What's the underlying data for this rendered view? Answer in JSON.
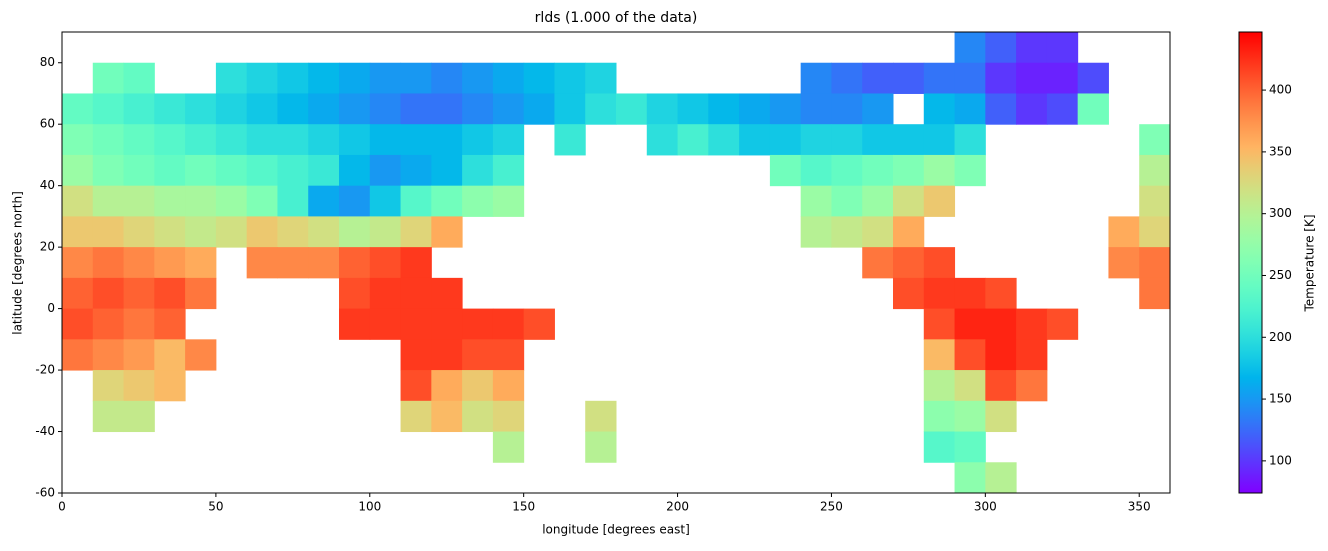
{
  "chart_data": {
    "type": "heatmap",
    "title": "rlds (1.000 of the data)",
    "xlabel": "longitude [degrees east]",
    "ylabel": "latitude [degrees north]",
    "colormap": "rainbow",
    "xlim": [
      0,
      360
    ],
    "ylim": [
      -60,
      90
    ],
    "xticks": [
      0,
      50,
      100,
      150,
      200,
      250,
      300,
      350
    ],
    "yticks": [
      -60,
      -40,
      -20,
      0,
      20,
      40,
      60,
      80
    ],
    "x": [
      5,
      15,
      25,
      35,
      45,
      55,
      65,
      75,
      85,
      95,
      105,
      115,
      125,
      135,
      145,
      155,
      165,
      175,
      185,
      195,
      205,
      215,
      225,
      235,
      245,
      255,
      265,
      275,
      285,
      295,
      305,
      315,
      325,
      335,
      345,
      355
    ],
    "y": [
      85,
      75,
      65,
      55,
      45,
      35,
      25,
      15,
      5,
      -5,
      -15,
      -25,
      -35,
      -45,
      -55
    ],
    "values": [
      [
        null,
        null,
        null,
        null,
        null,
        null,
        null,
        null,
        null,
        null,
        null,
        null,
        null,
        null,
        null,
        null,
        null,
        null,
        null,
        null,
        null,
        null,
        null,
        null,
        null,
        null,
        null,
        null,
        null,
        140,
        120,
        100,
        100,
        null,
        null,
        null
      ],
      [
        null,
        250,
        240,
        null,
        null,
        200,
        190,
        180,
        170,
        160,
        150,
        150,
        140,
        150,
        160,
        170,
        180,
        190,
        null,
        null,
        null,
        null,
        null,
        null,
        140,
        130,
        120,
        120,
        130,
        130,
        100,
        90,
        90,
        110,
        null,
        null
      ],
      [
        240,
        230,
        220,
        210,
        200,
        190,
        180,
        170,
        160,
        150,
        140,
        130,
        130,
        140,
        150,
        160,
        180,
        200,
        210,
        190,
        180,
        170,
        160,
        150,
        140,
        140,
        150,
        null,
        170,
        160,
        120,
        100,
        110,
        250,
        null,
        null
      ],
      [
        260,
        250,
        240,
        230,
        220,
        210,
        200,
        200,
        190,
        180,
        170,
        170,
        170,
        180,
        190,
        null,
        210,
        null,
        null,
        200,
        220,
        200,
        180,
        180,
        190,
        190,
        180,
        180,
        180,
        200,
        null,
        null,
        null,
        null,
        null,
        260
      ],
      [
        280,
        260,
        250,
        240,
        250,
        240,
        230,
        220,
        210,
        170,
        150,
        160,
        170,
        200,
        220,
        null,
        null,
        null,
        null,
        null,
        null,
        null,
        null,
        250,
        230,
        240,
        250,
        260,
        280,
        260,
        null,
        null,
        null,
        null,
        null,
        300
      ],
      [
        320,
        300,
        300,
        290,
        290,
        280,
        260,
        220,
        160,
        150,
        180,
        230,
        250,
        270,
        280,
        null,
        null,
        null,
        null,
        null,
        null,
        null,
        null,
        null,
        280,
        260,
        280,
        320,
        340,
        null,
        null,
        null,
        null,
        null,
        null,
        320
      ],
      [
        340,
        340,
        330,
        320,
        310,
        320,
        340,
        330,
        320,
        300,
        310,
        330,
        360,
        null,
        null,
        null,
        null,
        null,
        null,
        null,
        null,
        null,
        null,
        null,
        300,
        310,
        320,
        360,
        null,
        null,
        null,
        null,
        null,
        null,
        360,
        330
      ],
      [
        380,
        390,
        380,
        370,
        360,
        null,
        380,
        380,
        380,
        400,
        410,
        420,
        null,
        null,
        null,
        null,
        null,
        null,
        null,
        null,
        null,
        null,
        null,
        null,
        null,
        null,
        390,
        400,
        410,
        null,
        null,
        null,
        null,
        null,
        380,
        390
      ],
      [
        400,
        410,
        400,
        410,
        390,
        null,
        null,
        null,
        null,
        410,
        420,
        420,
        420,
        null,
        null,
        null,
        null,
        null,
        null,
        null,
        null,
        null,
        null,
        null,
        null,
        null,
        null,
        410,
        420,
        420,
        410,
        null,
        null,
        null,
        null,
        390
      ],
      [
        410,
        400,
        390,
        400,
        null,
        null,
        null,
        null,
        null,
        420,
        420,
        420,
        420,
        420,
        420,
        410,
        null,
        null,
        null,
        null,
        null,
        null,
        null,
        null,
        null,
        null,
        null,
        null,
        410,
        430,
        430,
        420,
        410,
        null,
        null,
        null
      ],
      [
        390,
        380,
        370,
        350,
        380,
        null,
        null,
        null,
        null,
        null,
        null,
        420,
        420,
        410,
        410,
        null,
        null,
        null,
        null,
        null,
        null,
        null,
        null,
        null,
        null,
        null,
        null,
        null,
        350,
        410,
        430,
        420,
        null,
        null,
        null,
        null
      ],
      [
        null,
        330,
        340,
        350,
        null,
        null,
        null,
        null,
        null,
        null,
        null,
        410,
        360,
        340,
        360,
        null,
        null,
        null,
        null,
        null,
        null,
        null,
        null,
        null,
        null,
        null,
        null,
        null,
        300,
        320,
        410,
        390,
        null,
        null,
        null,
        null
      ],
      [
        null,
        310,
        310,
        null,
        null,
        null,
        null,
        null,
        null,
        null,
        null,
        330,
        350,
        320,
        330,
        null,
        null,
        320,
        null,
        null,
        null,
        null,
        null,
        null,
        null,
        null,
        null,
        null,
        270,
        280,
        320,
        null,
        null,
        null,
        null,
        null
      ],
      [
        null,
        null,
        null,
        null,
        null,
        null,
        null,
        null,
        null,
        null,
        null,
        null,
        null,
        null,
        300,
        null,
        null,
        300,
        null,
        null,
        null,
        null,
        null,
        null,
        null,
        null,
        null,
        null,
        230,
        240,
        null,
        null,
        null,
        null,
        null,
        null
      ],
      [
        null,
        null,
        null,
        null,
        null,
        null,
        null,
        null,
        null,
        null,
        null,
        null,
        null,
        null,
        null,
        null,
        null,
        null,
        null,
        null,
        null,
        null,
        null,
        null,
        null,
        null,
        null,
        null,
        null,
        270,
        300,
        null,
        null,
        null,
        null,
        null
      ]
    ],
    "colorbar": {
      "label": "Temperature [K]",
      "lim": [
        74,
        447
      ],
      "ticks": [
        100,
        150,
        200,
        250,
        300,
        350,
        400
      ]
    }
  }
}
